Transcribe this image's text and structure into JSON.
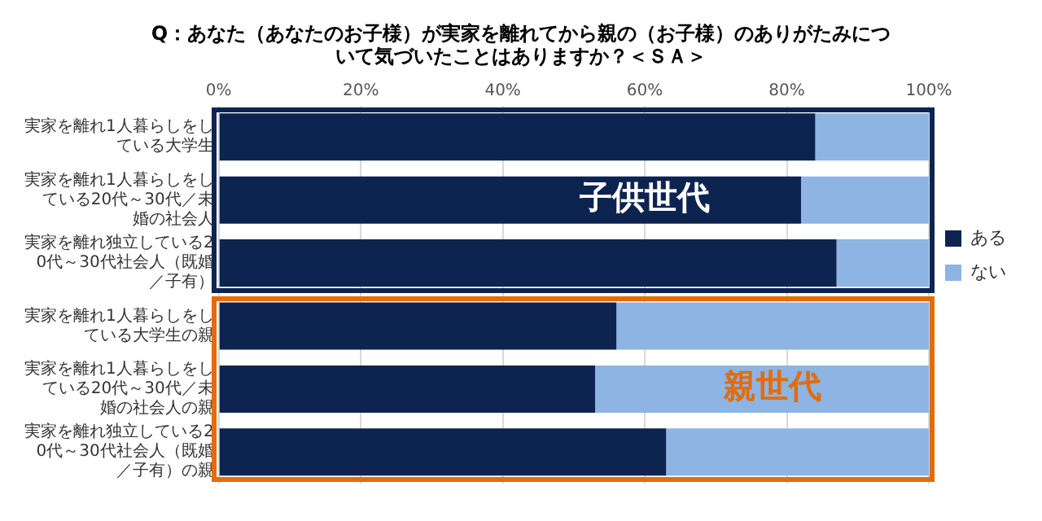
{
  "chart_data": {
    "type": "bar",
    "orientation": "horizontal",
    "stacked": true,
    "title": "Q：あなた（あなたのお子様）が実家を離れてから親の（お子様）のありがたみについて気づいたことはありますか？＜ＳＡ＞",
    "categories": [
      "実家を離れ1人暮らしをしている大学生",
      "実家を離れ1人暮らしをしている20代～30代／未婚の社会人",
      "実家を離れ独立している20代～30代社会人（既婚／子有）",
      "実家を離れ1人暮らしをしている大学生の親",
      "実家を離れ1人暮らしをしている20代～30代／未婚の社会人の親",
      "実家を離れ独立している20代～30代社会人（既婚／子有）の親"
    ],
    "series": [
      {
        "name": "ある",
        "color": "#0d2451",
        "values": [
          84,
          82,
          87,
          56,
          53,
          63
        ]
      },
      {
        "name": "ない",
        "color": "#8db4e2",
        "values": [
          16,
          18,
          13,
          44,
          47,
          37
        ]
      }
    ],
    "xlim": [
      0,
      100
    ],
    "xticks": [
      {
        "value": 0,
        "label": "0%"
      },
      {
        "value": 20,
        "label": "20%"
      },
      {
        "value": 40,
        "label": "40%"
      },
      {
        "value": 60,
        "label": "60%"
      },
      {
        "value": 80,
        "label": "80%"
      },
      {
        "value": 100,
        "label": "100%"
      }
    ],
    "grid": "x",
    "legend": "right",
    "annotations": [
      "子供世代",
      "親世代"
    ]
  }
}
